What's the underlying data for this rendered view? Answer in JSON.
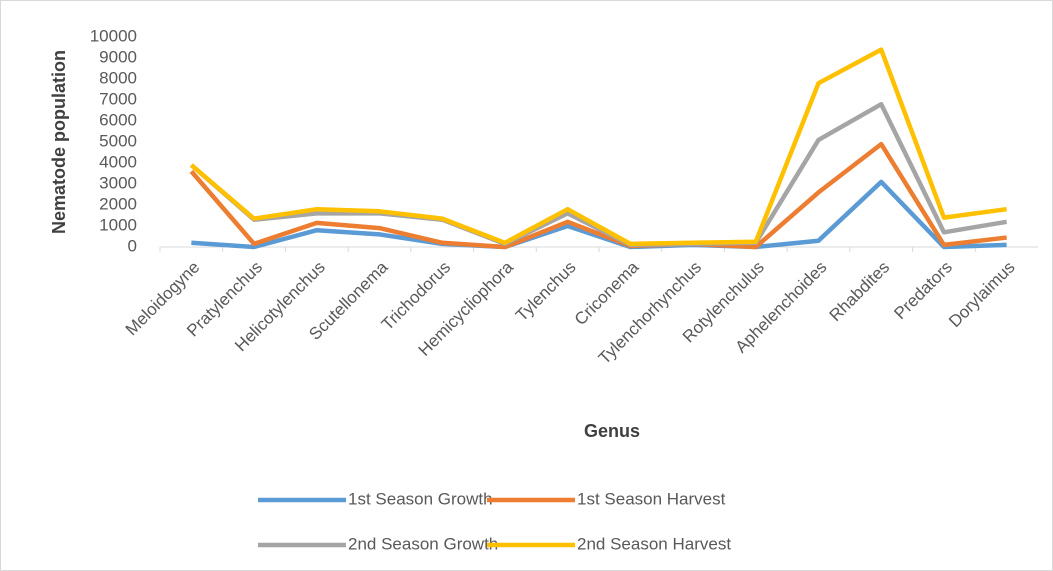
{
  "chart_data": {
    "type": "line",
    "x_label": "Genus",
    "y_label": "Nematode population",
    "categories": [
      "Meloidogyne",
      "Pratylenchus",
      "Helicotylenchus",
      "Scutellonema",
      "Trichodorus",
      "Hemicycliophora",
      "Tylenchus",
      "Criconema",
      "Tylenchorhynchus",
      "Rotylenchulus",
      "Aphelenchoides",
      "Rhabdites",
      "Predators",
      "Dorylaimus"
    ],
    "series": [
      {
        "name": "1st Season Growth",
        "color": "#5b9bd5",
        "values": [
          200,
          0,
          800,
          600,
          150,
          0,
          1000,
          0,
          100,
          0,
          300,
          3100,
          0,
          100
        ]
      },
      {
        "name": "1st Season Harvest",
        "color": "#ed7d31",
        "values": [
          3600,
          150,
          1150,
          900,
          200,
          0,
          1200,
          50,
          150,
          0,
          2600,
          4900,
          100,
          450
        ]
      },
      {
        "name": "2nd Season Growth",
        "color": "#a5a5a5",
        "values": [
          3900,
          1300,
          1600,
          1600,
          1300,
          150,
          1600,
          100,
          150,
          200,
          5100,
          6800,
          700,
          1200
        ]
      },
      {
        "name": "2nd Season Harvest",
        "color": "#ffc000",
        "values": [
          3900,
          1350,
          1800,
          1700,
          1350,
          200,
          1800,
          150,
          200,
          250,
          7800,
          9400,
          1400,
          1800
        ]
      }
    ],
    "ylim": [
      0,
      10000
    ],
    "yticks": [
      0,
      1000,
      2000,
      3000,
      4000,
      5000,
      6000,
      7000,
      8000,
      9000,
      10000
    ],
    "grid": false
  }
}
